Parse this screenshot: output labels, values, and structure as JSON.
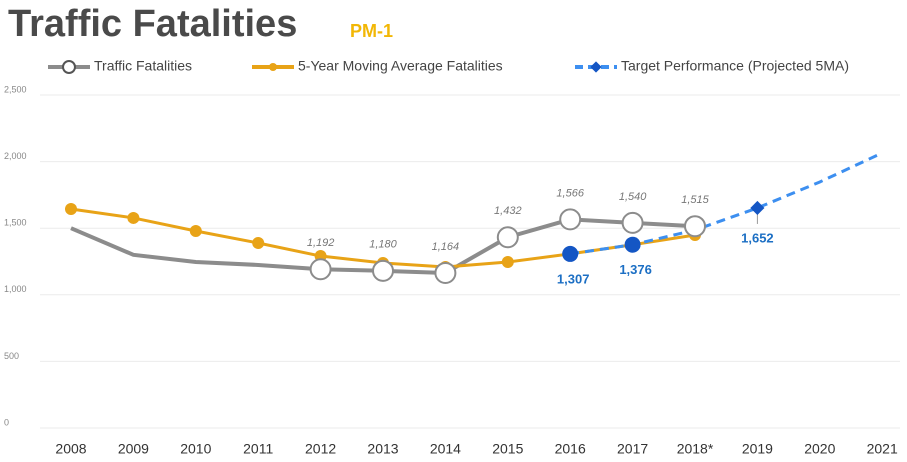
{
  "chart_data": {
    "type": "line",
    "title": "Traffic Fatalities",
    "subtitle": "PM-1",
    "categories": [
      "2008",
      "2009",
      "2010",
      "2011",
      "2012",
      "2013",
      "2014",
      "2015",
      "2016",
      "2017",
      "2018*",
      "2019",
      "2020",
      "2021"
    ],
    "series": [
      {
        "name": "Traffic Fatalities",
        "color": "#8c8c8c",
        "values": [
          1500,
          1300,
          1246,
          1224,
          1192,
          1180,
          1164,
          1432,
          1566,
          1540,
          1515,
          null,
          null,
          null
        ],
        "value_labels": [
          null,
          null,
          null,
          null,
          "1,192",
          "1,180",
          "1,164",
          "1,432",
          "1,566",
          "1,540",
          "1,515",
          null,
          null,
          null
        ]
      },
      {
        "name": "5-Year Moving Average Fatalities",
        "color": "#e8a317",
        "values": [
          1644,
          1577,
          1479,
          1389,
          1291,
          1239,
          1209,
          1246,
          1307,
          1376,
          1449,
          null,
          null,
          null
        ]
      },
      {
        "name": "Target Performance (Projected 5MA)",
        "color": "#3d8ff0",
        "marker_color": "#1456c4",
        "dashed": true,
        "values": [
          null,
          null,
          null,
          null,
          null,
          null,
          null,
          null,
          1307,
          1376,
          1486,
          1652,
          1847,
          2065
        ],
        "value_labels": [
          null,
          null,
          null,
          null,
          null,
          null,
          null,
          null,
          "1,307",
          "1,376",
          null,
          "1,652",
          null,
          null
        ]
      }
    ],
    "ylim": [
      0,
      2500
    ],
    "yticks": [
      0,
      500,
      {
        "value": 1000,
        "label": "1,000"
      },
      {
        "value": 1500,
        "label": "1,500"
      },
      {
        "value": 2000,
        "label": "2,000"
      },
      {
        "value": 2500,
        "label": "2,500"
      }
    ],
    "grid": true
  }
}
